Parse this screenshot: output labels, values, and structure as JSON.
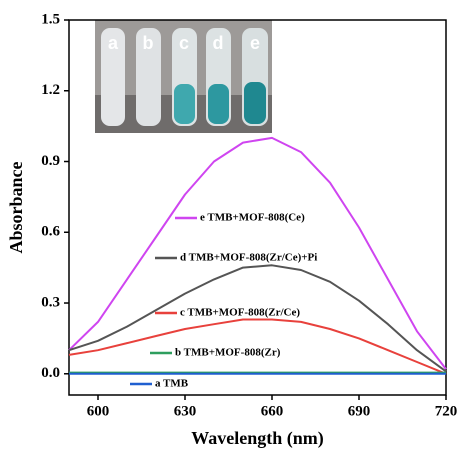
{
  "chart_data": {
    "type": "line",
    "xlabel": "Wavelength (nm)",
    "ylabel": "Absorbance",
    "inset_labels": [
      "a",
      "b",
      "c",
      "d",
      "e"
    ],
    "x": [
      590,
      600,
      610,
      620,
      630,
      640,
      650,
      660,
      670,
      680,
      690,
      700,
      710,
      720
    ],
    "series": [
      {
        "name": "e TMB+MOF-808(Ce)",
        "color": "#cf45f0",
        "values": [
          0.1,
          0.22,
          0.4,
          0.58,
          0.76,
          0.9,
          0.98,
          1.0,
          0.94,
          0.81,
          0.62,
          0.4,
          0.18,
          0.02
        ]
      },
      {
        "name": "d TMB+MOF-808(Zr/Ce)+Pi",
        "color": "#555555",
        "values": [
          0.1,
          0.14,
          0.2,
          0.27,
          0.34,
          0.4,
          0.45,
          0.46,
          0.44,
          0.39,
          0.31,
          0.21,
          0.1,
          0.01
        ]
      },
      {
        "name": "c TMB+MOF-808(Zr/Ce)",
        "color": "#e8413c",
        "values": [
          0.08,
          0.1,
          0.13,
          0.16,
          0.19,
          0.21,
          0.23,
          0.23,
          0.22,
          0.19,
          0.15,
          0.1,
          0.05,
          0.0
        ]
      },
      {
        "name": "b TMB+MOF-808(Zr)",
        "color": "#2e9e5e",
        "values": [
          0.005,
          0.005,
          0.005,
          0.005,
          0.005,
          0.005,
          0.005,
          0.005,
          0.005,
          0.005,
          0.005,
          0.005,
          0.005,
          0.005
        ]
      },
      {
        "name": "a TMB",
        "color": "#1f5fd0",
        "values": [
          0.0,
          0.0,
          0.0,
          0.0,
          0.0,
          0.0,
          0.0,
          0.0,
          0.0,
          0.0,
          0.0,
          0.0,
          0.0,
          0.0
        ]
      }
    ],
    "xlim": [
      590,
      720
    ],
    "xticks": [
      600,
      630,
      660,
      690,
      720
    ],
    "ylim": [
      -0.09,
      1.5
    ],
    "yticks": [
      {
        "value": 0,
        "label": "0.0"
      },
      0.3,
      0.6,
      0.9,
      1.2,
      1.5
    ],
    "grid": false
  }
}
